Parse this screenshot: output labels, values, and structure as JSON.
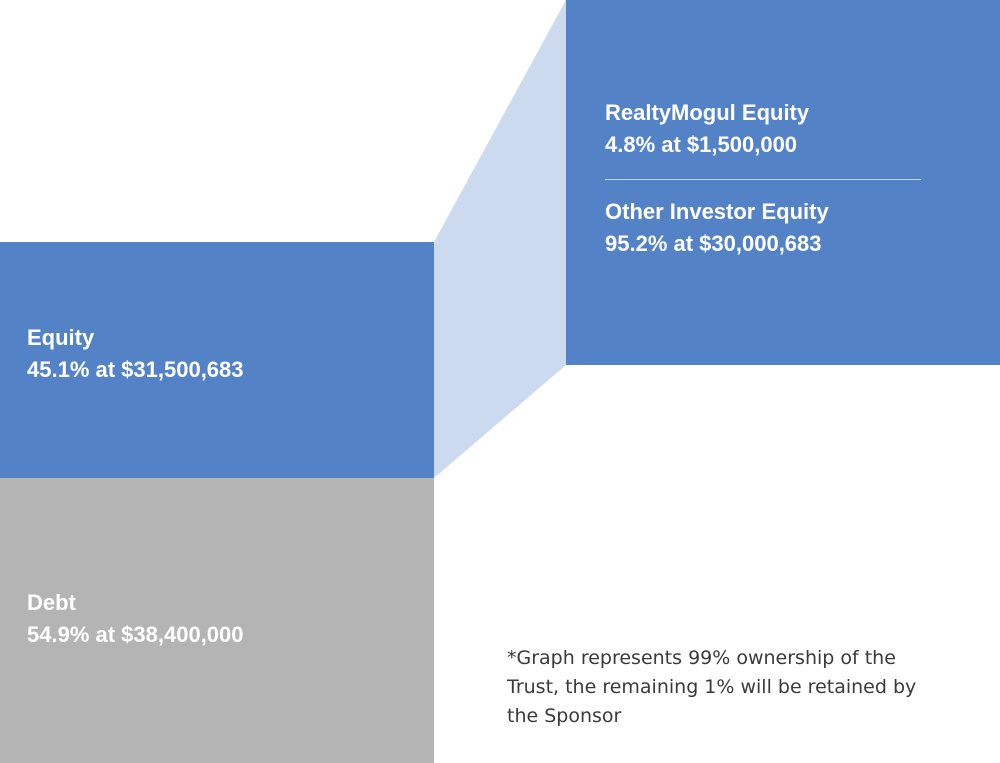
{
  "colors": {
    "equity": "#5383c6",
    "debt": "#b4b4b4",
    "connector": "#cbdaee",
    "text_light": "#ffffff",
    "text_dark": "#3a3a3a"
  },
  "chart_data": {
    "type": "bar",
    "title": "",
    "stacks": [
      {
        "segments": [
          {
            "name": "Debt",
            "percent": 54.9,
            "amount": 38400000,
            "value_label": "54.9% at $38,400,000"
          },
          {
            "name": "Equity",
            "percent": 45.1,
            "amount": 31500683,
            "value_label": "45.1% at $31,500,683"
          }
        ]
      },
      {
        "breakdown_of": "Equity",
        "segments": [
          {
            "name": "Other Investor Equity",
            "percent": 95.2,
            "amount": 30000683,
            "value_label": "95.2% at $30,000,683"
          },
          {
            "name": "RealtyMogul Equity",
            "percent": 4.8,
            "amount": 1500000,
            "value_label": "4.8% at $1,500,000"
          }
        ]
      }
    ],
    "footnote": "*Graph represents 99% ownership of the Trust, the remaining 1% will be retained by the Sponsor"
  }
}
